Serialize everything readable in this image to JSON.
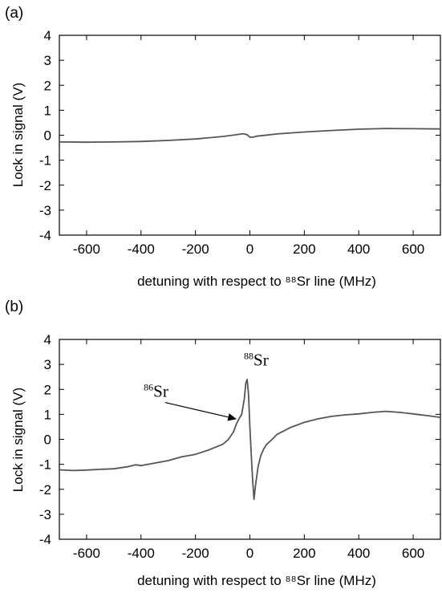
{
  "chart_data": [
    {
      "panel_label": "(a)",
      "type": "line",
      "xlabel": "detuning with respect to ⁸⁸Sr line (MHz)",
      "ylabel": "Lock in signal (V)",
      "xlim": [
        -700,
        700
      ],
      "ylim": [
        -4,
        4
      ],
      "xticks": [
        "-600",
        "-400",
        "-200",
        "0",
        "200",
        "400",
        "600"
      ],
      "yticks": [
        "4",
        "3",
        "2",
        "1",
        "0",
        "-1",
        "-2",
        "-3",
        "-4"
      ],
      "xticks_values": [
        -600,
        -400,
        -200,
        0,
        200,
        400,
        600
      ],
      "yticks_values": [
        4,
        3,
        2,
        1,
        0,
        -1,
        -2,
        -3,
        -4
      ],
      "grid": false,
      "series": [
        {
          "x": [
            -700,
            -600,
            -500,
            -400,
            -300,
            -200,
            -100,
            -50,
            -25,
            -10,
            0,
            10,
            25,
            50,
            100,
            200,
            300,
            400,
            500,
            600,
            700
          ],
          "y": [
            -0.27,
            -0.28,
            -0.27,
            -0.25,
            -0.21,
            -0.15,
            -0.05,
            0.02,
            0.06,
            0.02,
            -0.08,
            -0.08,
            -0.04,
            -0.01,
            0.05,
            0.13,
            0.19,
            0.24,
            0.27,
            0.26,
            0.25
          ]
        }
      ],
      "annotations": []
    },
    {
      "panel_label": "(b)",
      "type": "line",
      "xlabel": "detuning with respect to ⁸⁸Sr line (MHz)",
      "ylabel": "Lock in signal (V)",
      "xlim": [
        -700,
        700
      ],
      "ylim": [
        -4,
        4
      ],
      "xticks": [
        "-600",
        "-400",
        "-200",
        "0",
        "200",
        "400",
        "600"
      ],
      "yticks": [
        "4",
        "3",
        "2",
        "1",
        "0",
        "-1",
        "-2",
        "-3",
        "-4"
      ],
      "xticks_values": [
        -600,
        -400,
        -200,
        0,
        200,
        400,
        600
      ],
      "yticks_values": [
        4,
        3,
        2,
        1,
        0,
        -1,
        -2,
        -3,
        -4
      ],
      "grid": false,
      "series": [
        {
          "x": [
            -700,
            -650,
            -600,
            -550,
            -500,
            -450,
            -420,
            -400,
            -350,
            -300,
            -250,
            -200,
            -150,
            -100,
            -80,
            -60,
            -50,
            -40,
            -30,
            -20,
            -15,
            -10,
            -5,
            0,
            5,
            10,
            15,
            20,
            30,
            40,
            50,
            60,
            80,
            100,
            150,
            200,
            250,
            300,
            350,
            400,
            450,
            500,
            550,
            600,
            650,
            700
          ],
          "y": [
            -1.22,
            -1.25,
            -1.23,
            -1.2,
            -1.18,
            -1.1,
            -1.02,
            -1.05,
            -0.95,
            -0.85,
            -0.7,
            -0.6,
            -0.42,
            -0.2,
            -0.02,
            0.3,
            0.6,
            0.82,
            1.0,
            1.65,
            2.25,
            2.4,
            1.8,
            0.5,
            -0.6,
            -1.6,
            -2.4,
            -1.9,
            -1.1,
            -0.65,
            -0.4,
            -0.22,
            -0.02,
            0.2,
            0.48,
            0.68,
            0.82,
            0.92,
            0.98,
            1.02,
            1.08,
            1.12,
            1.08,
            1.02,
            0.95,
            0.88
          ]
        }
      ],
      "annotations": [
        {
          "text": "Sr",
          "superscript": "88",
          "x": -22,
          "y": 2.95
        },
        {
          "text": "Sr",
          "superscript": "86",
          "x": -390,
          "y": 1.7,
          "arrow_to": {
            "x": -52,
            "y": 0.82
          }
        }
      ]
    }
  ]
}
